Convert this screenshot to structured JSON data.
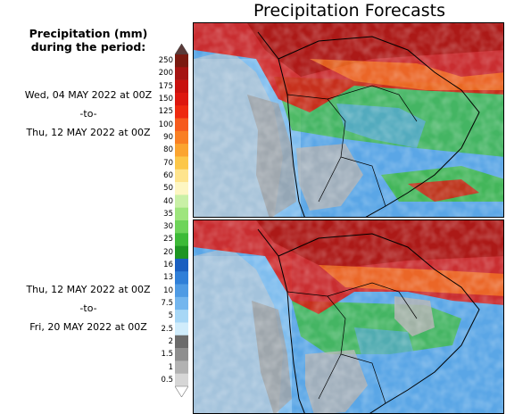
{
  "title": "Precipitation Forecasts",
  "legend": {
    "title_line1": "Precipitation (mm)",
    "title_line2": "during the period:",
    "levels": [
      "250",
      "200",
      "175",
      "150",
      "125",
      "100",
      "90",
      "80",
      "70",
      "60",
      "50",
      "40",
      "35",
      "30",
      "25",
      "20",
      "16",
      "13",
      "10",
      "7.5",
      "5",
      "2.5",
      "2",
      "1.5",
      "1",
      "0.5"
    ],
    "colors": [
      "#7a1a10",
      "#a51412",
      "#c8100d",
      "#dd170f",
      "#ee2a10",
      "#f65a1d",
      "#f97f23",
      "#fba42f",
      "#fcc749",
      "#fee48d",
      "#fdf6c2",
      "#c9f0a6",
      "#9ee57d",
      "#6ed45a",
      "#3dba37",
      "#1e9522",
      "#1a5fc0",
      "#2f7fd8",
      "#4f9be4",
      "#74b6ee",
      "#a7d7f6",
      "#d0ecfb",
      "#6b6b6b",
      "#8e8e8e",
      "#b2b2b2",
      "#d6d6d6"
    ]
  },
  "periods": [
    {
      "start": "Wed, 04 MAY 2022 at 00Z",
      "sep": "-to-",
      "end": "Thu, 12 MAY 2022 at 00Z"
    },
    {
      "start": "Thu, 12 MAY 2022 at 00Z",
      "sep": "-to-",
      "end": "Fri, 20 MAY 2022 at 00Z"
    }
  ]
}
